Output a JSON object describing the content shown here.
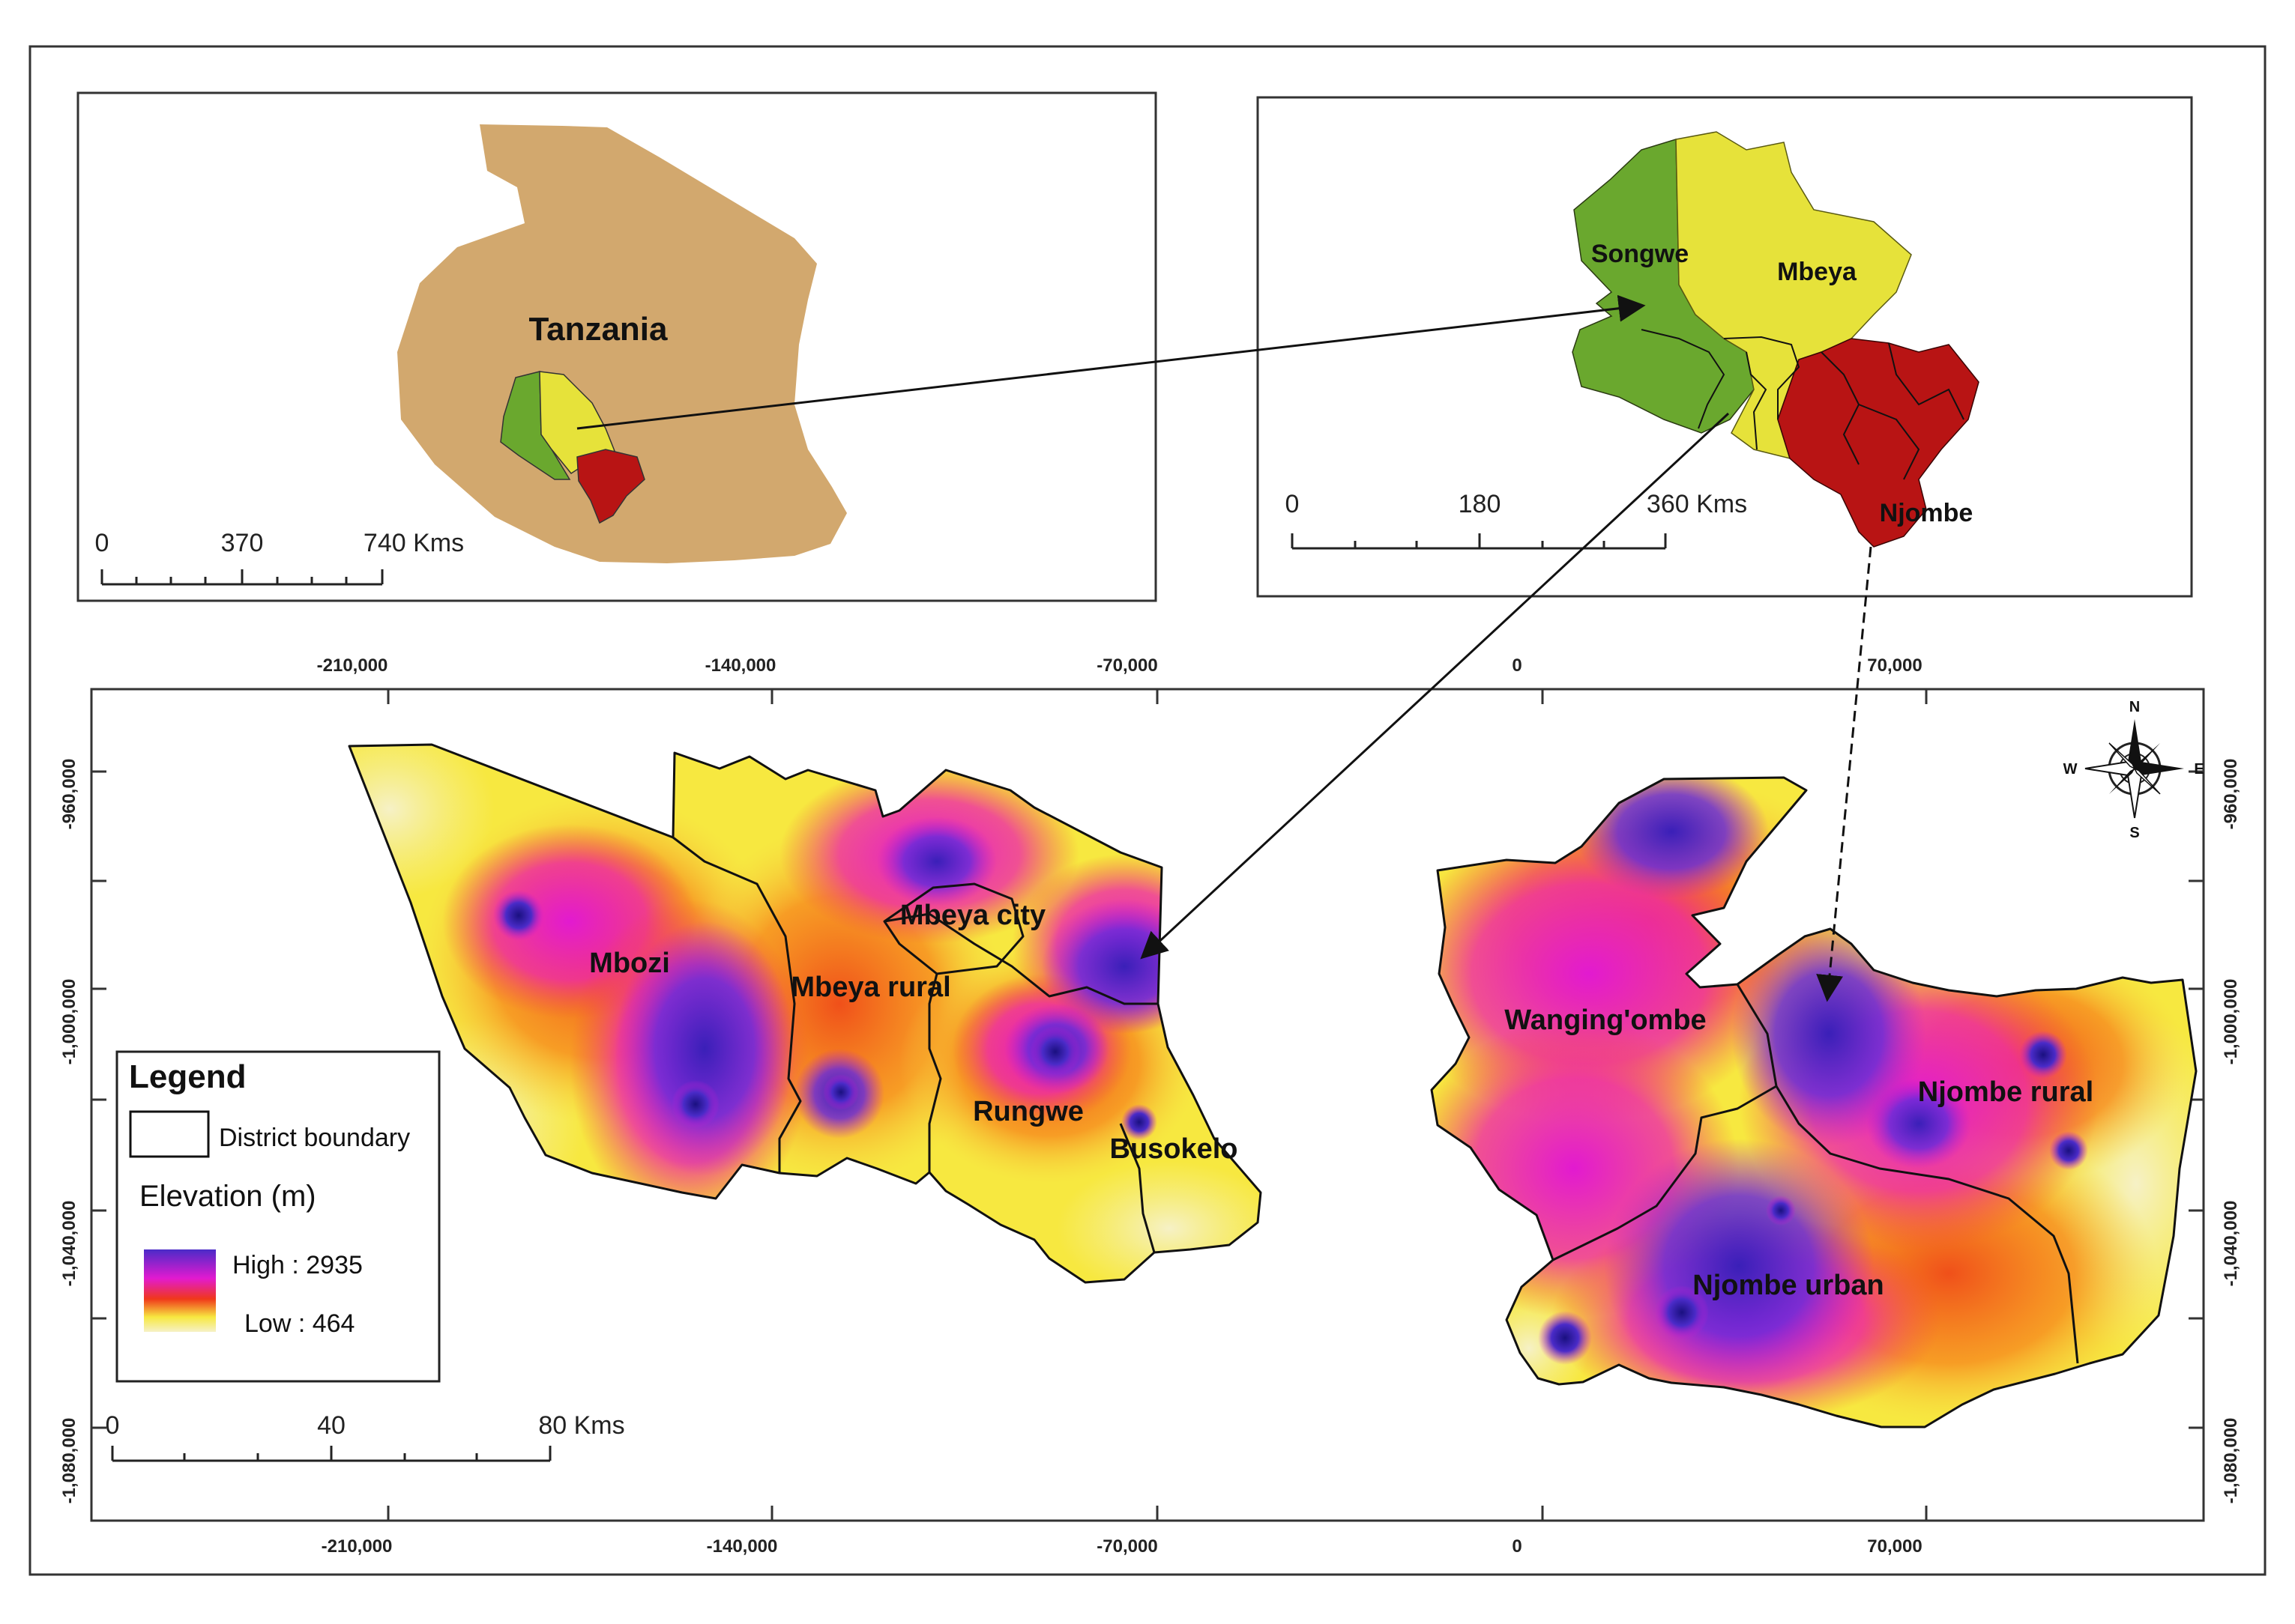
{
  "inset_tanzania": {
    "country_label": "Tanzania",
    "scale": {
      "ticks": [
        "0",
        "370",
        "740 Kms"
      ]
    }
  },
  "inset_regions": {
    "labels": {
      "songwe": "Songwe",
      "mbeya": "Mbeya",
      "njombe": "Njombe"
    },
    "scale": {
      "ticks": [
        "0",
        "180",
        "360 Kms"
      ]
    }
  },
  "main_map": {
    "top_ticks": [
      "-210,000",
      "-140,000",
      "-70,000",
      "0",
      "70,000"
    ],
    "bottom_ticks": [
      "-210,000",
      "-140,000",
      "-70,000",
      "0",
      "70,000"
    ],
    "left_ticks": [
      "-960,000",
      "-1,000,000",
      "-1,040,000",
      "-1,080,000"
    ],
    "right_ticks": [
      "-960,000",
      "-1,000,000",
      "-1,040,000",
      "-1,080,000"
    ],
    "districts": {
      "mbozi": "Mbozi",
      "mbeya_city": "Mbeya city",
      "mbeya_rural": "Mbeya rural",
      "rungwe": "Rungwe",
      "busokelo": "Busokelo",
      "wangingombe": "Wanging'ombe",
      "njombe_rural": "Njombe rural",
      "njombe_urban": "Njombe urban"
    },
    "scale": {
      "ticks": [
        "0",
        "40",
        "80 Kms"
      ]
    },
    "north_arrow": {
      "n": "N",
      "s": "S",
      "e": "E",
      "w": "W"
    }
  },
  "legend": {
    "title": "Legend",
    "boundary_label": "District boundary",
    "elevation_title": "Elevation (m)",
    "high_label": "High : 2935",
    "low_label": "Low : 464"
  },
  "colors": {
    "tanzania": "#d2a86e",
    "songwe": "#6aa82e",
    "mbeya": "#e6e23a",
    "njombe": "#b81414",
    "elev_high": "#4a2bc8",
    "elev_mid": "#e21ad0",
    "elev_midlow": "#f03a1a",
    "elev_low": "#f7f060",
    "elev_lowest": "#f6f1c6"
  }
}
